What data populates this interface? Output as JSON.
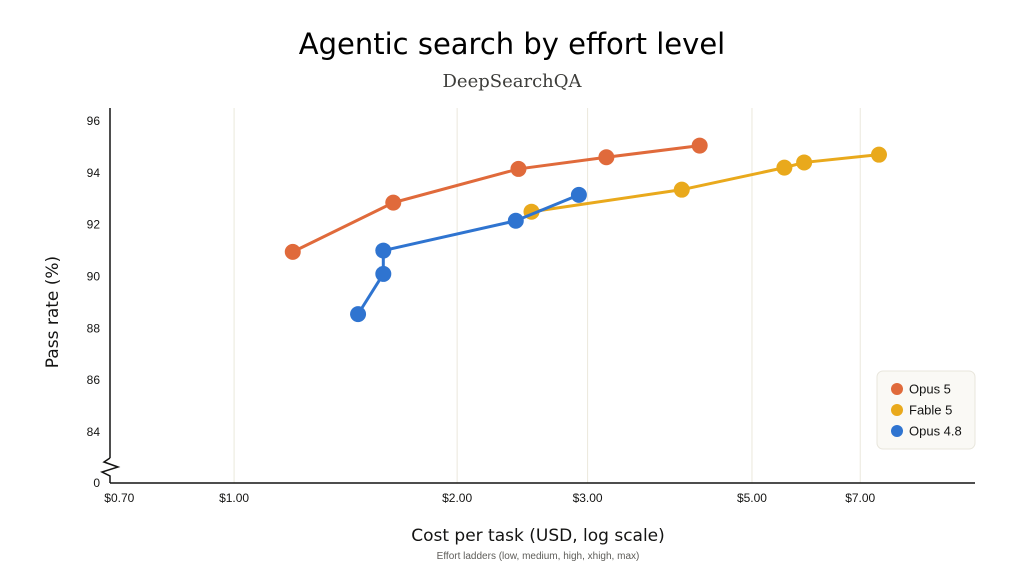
{
  "chart_data": {
    "type": "scatter",
    "title": "Agentic search by effort level",
    "subtitle": "DeepSearchQA",
    "xlabel": "Cost per task (USD, log scale)",
    "ylabel": "Pass rate (%)",
    "x_note": "Effort ladders (low, medium, high, xhigh, max)",
    "x_scale": "log",
    "xlim": [
      0.68,
      10.0
    ],
    "x_ticks": [
      {
        "value": 0.7,
        "label": "$0.70"
      },
      {
        "value": 1.0,
        "label": "$1.00"
      },
      {
        "value": 2.0,
        "label": "$2.00"
      },
      {
        "value": 3.0,
        "label": "$3.00"
      },
      {
        "value": 5.0,
        "label": "$5.00"
      },
      {
        "value": 7.0,
        "label": "$7.00"
      }
    ],
    "x_gridlines": [
      1.0,
      2.0,
      3.0,
      5.0,
      7.0
    ],
    "ylim": [
      83,
      96.5
    ],
    "y_ticks": [
      {
        "value": 96,
        "label": "96"
      },
      {
        "value": 94,
        "label": "94"
      },
      {
        "value": 92,
        "label": "92"
      },
      {
        "value": 90,
        "label": "90"
      },
      {
        "value": 88,
        "label": "88"
      },
      {
        "value": 86,
        "label": "86"
      },
      {
        "value": 84,
        "label": "84"
      }
    ],
    "y_break": {
      "label": "0"
    },
    "grid": "vertical",
    "legend_position": "bottom-right",
    "series": [
      {
        "name": "Opus 5",
        "color": "#e06a3b",
        "x": [
          1.2,
          1.64,
          2.42,
          3.18,
          4.25
        ],
        "y": [
          90.95,
          92.85,
          94.15,
          94.6,
          95.05
        ]
      },
      {
        "name": "Fable 5",
        "color": "#e9a91c",
        "x": [
          2.52,
          4.02,
          5.53,
          5.88,
          7.42
        ],
        "y": [
          92.5,
          93.35,
          94.2,
          94.4,
          94.7
        ]
      },
      {
        "name": "Opus 4.8",
        "color": "#2f74d0",
        "x": [
          1.47,
          1.59,
          1.59,
          2.4,
          2.92
        ],
        "y": [
          88.55,
          90.1,
          91.0,
          92.15,
          93.15
        ]
      }
    ]
  }
}
